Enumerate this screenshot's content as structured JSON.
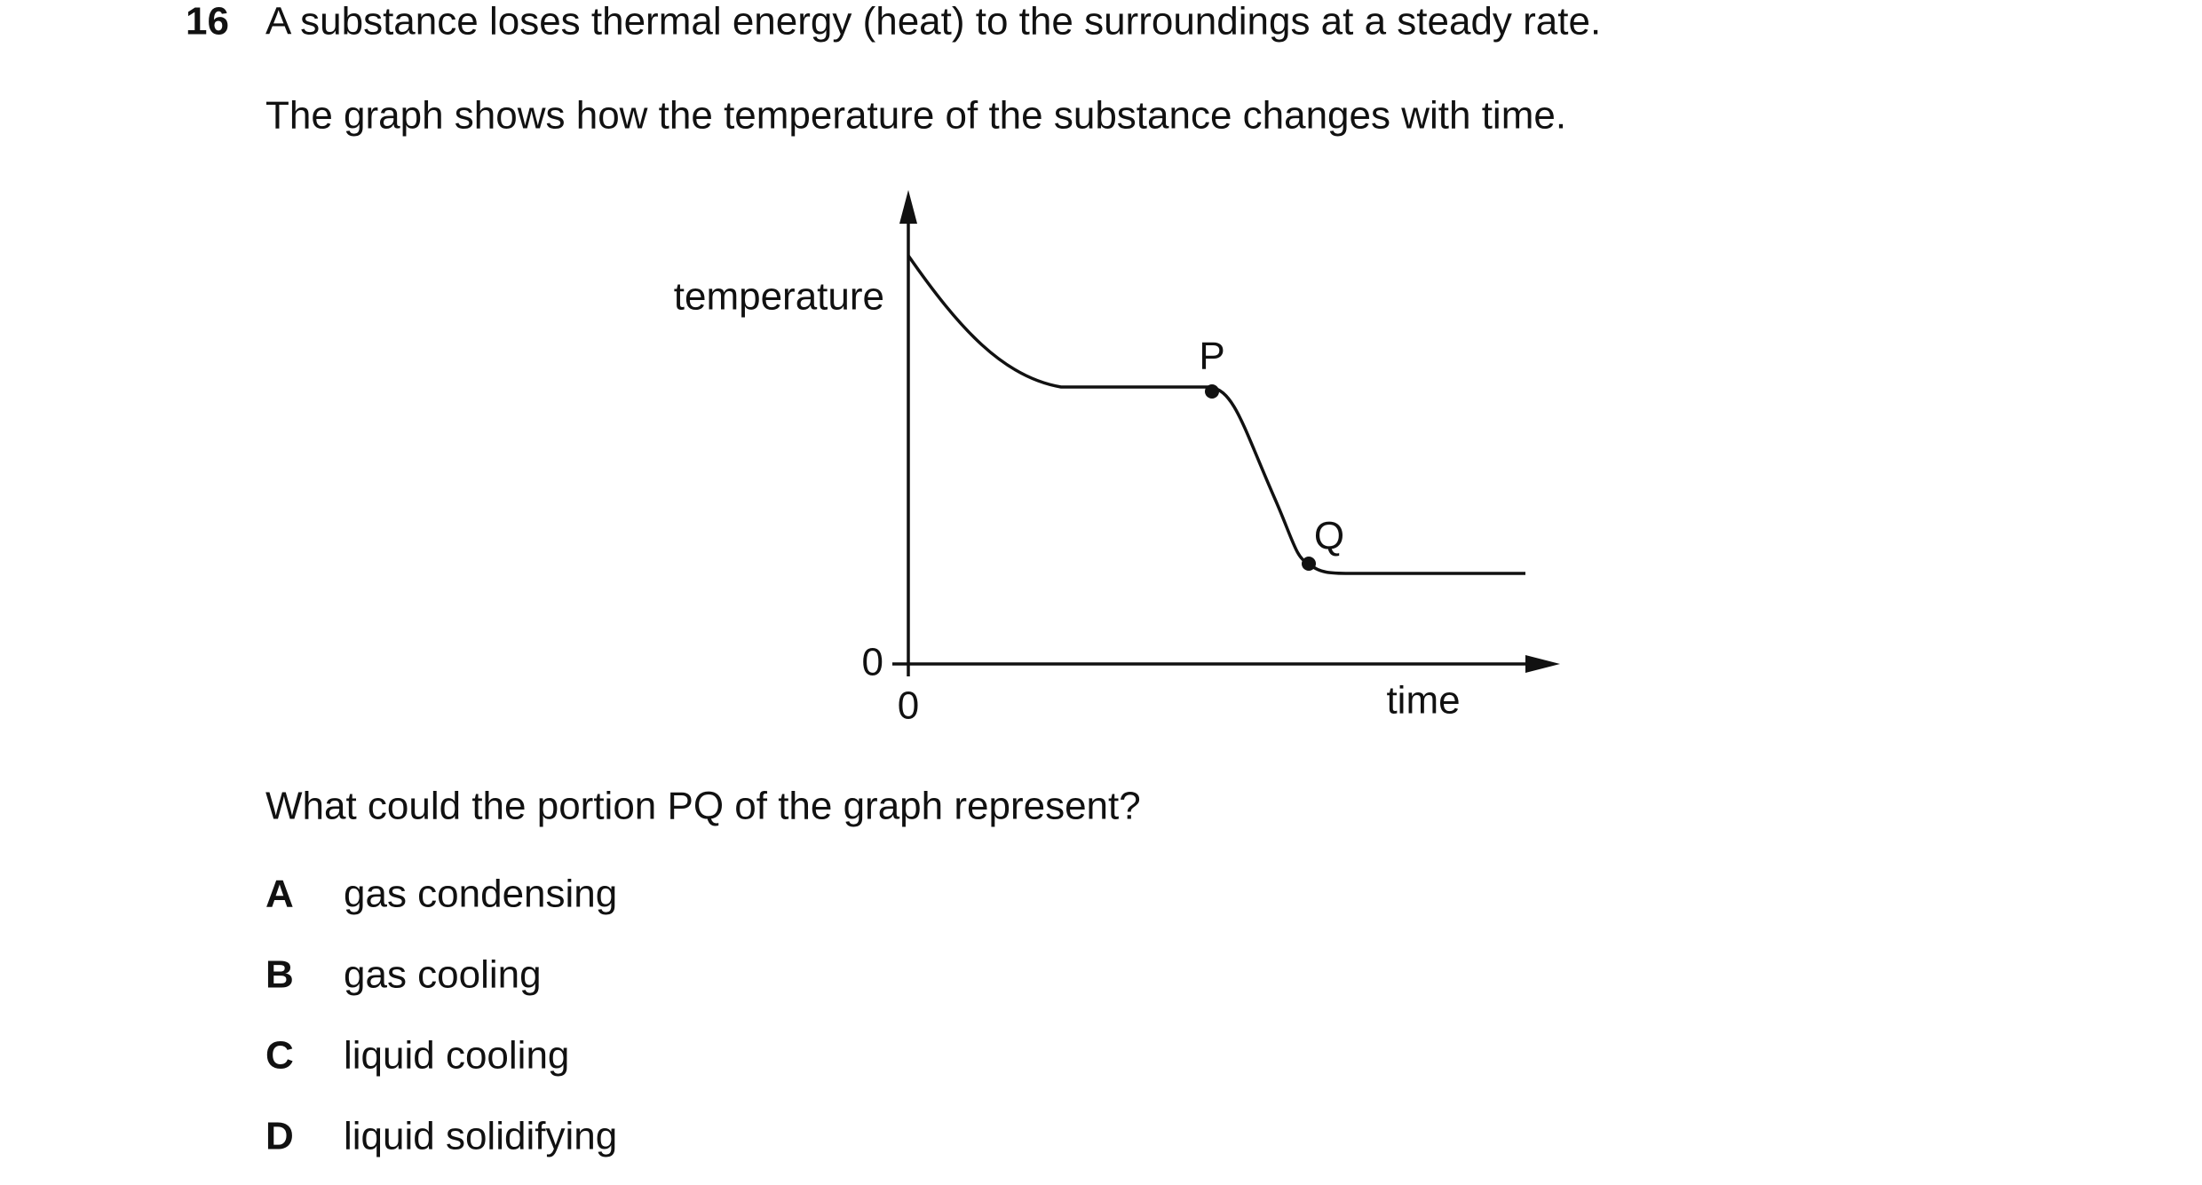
{
  "question": {
    "number": "16",
    "paragraphs": [
      "A substance loses thermal energy (heat) to the surroundings at a steady rate.",
      "The graph shows how the temperature of the substance changes with time."
    ]
  },
  "graph": {
    "y_label": "temperature",
    "x_label": "time",
    "y_origin_label": "0",
    "x_origin_label": "0",
    "points": [
      {
        "label": "P"
      },
      {
        "label": "Q"
      }
    ]
  },
  "prompt": "What could the portion PQ of the graph represent?",
  "options": [
    {
      "letter": "A",
      "text": "gas condensing"
    },
    {
      "letter": "B",
      "text": "gas cooling"
    },
    {
      "letter": "C",
      "text": "liquid cooling"
    },
    {
      "letter": "D",
      "text": "liquid solidifying"
    }
  ]
}
